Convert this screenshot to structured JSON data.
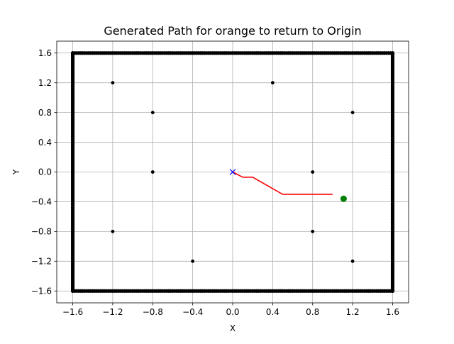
{
  "chart_data": {
    "type": "scatter",
    "title": "Generated Path for orange to return to Origin",
    "xlabel": "X",
    "ylabel": "Y",
    "xlim": [
      -1.76,
      1.76
    ],
    "ylim": [
      -1.76,
      1.76
    ],
    "grid": true,
    "xticks": [
      -1.6,
      -1.2,
      -0.8,
      -0.4,
      0.0,
      0.4,
      0.8,
      1.2,
      1.6
    ],
    "yticks": [
      -1.6,
      -1.2,
      -0.8,
      -0.4,
      0.0,
      0.4,
      0.8,
      1.2,
      1.6
    ],
    "xtick_labels": [
      "−1.6",
      "−1.2",
      "−0.8",
      "−0.4",
      "0.0",
      "0.4",
      "0.8",
      "1.2",
      "1.6"
    ],
    "ytick_labels": [
      "−1.6",
      "−1.2",
      "−0.8",
      "−0.4",
      "0.0",
      "0.4",
      "0.8",
      "1.2",
      "1.6"
    ],
    "boundary": {
      "xmin": -1.6,
      "xmax": 1.6,
      "ymin": -1.6,
      "ymax": 1.6,
      "step": 0.02,
      "color": "#000000"
    },
    "obstacles": [
      [
        -1.2,
        1.2
      ],
      [
        0.4,
        1.2
      ],
      [
        -0.8,
        0.8
      ],
      [
        1.2,
        0.8
      ],
      [
        -0.8,
        0.0
      ],
      [
        0.8,
        0.0
      ],
      [
        -1.2,
        -0.8
      ],
      [
        0.8,
        -0.8
      ],
      [
        -0.4,
        -1.2
      ],
      [
        1.2,
        -1.2
      ]
    ],
    "obstacle_color": "#000000",
    "path": {
      "color": "#ff0000",
      "points": [
        [
          0.0,
          0.0
        ],
        [
          0.1,
          -0.07
        ],
        [
          0.2,
          -0.07
        ],
        [
          0.5,
          -0.3
        ],
        [
          1.0,
          -0.3
        ]
      ]
    },
    "origin": {
      "x": 0.0,
      "y": 0.0,
      "marker": "x",
      "color": "#0000ff"
    },
    "agent": {
      "x": 1.11,
      "y": -0.36,
      "color": "#008000"
    }
  }
}
